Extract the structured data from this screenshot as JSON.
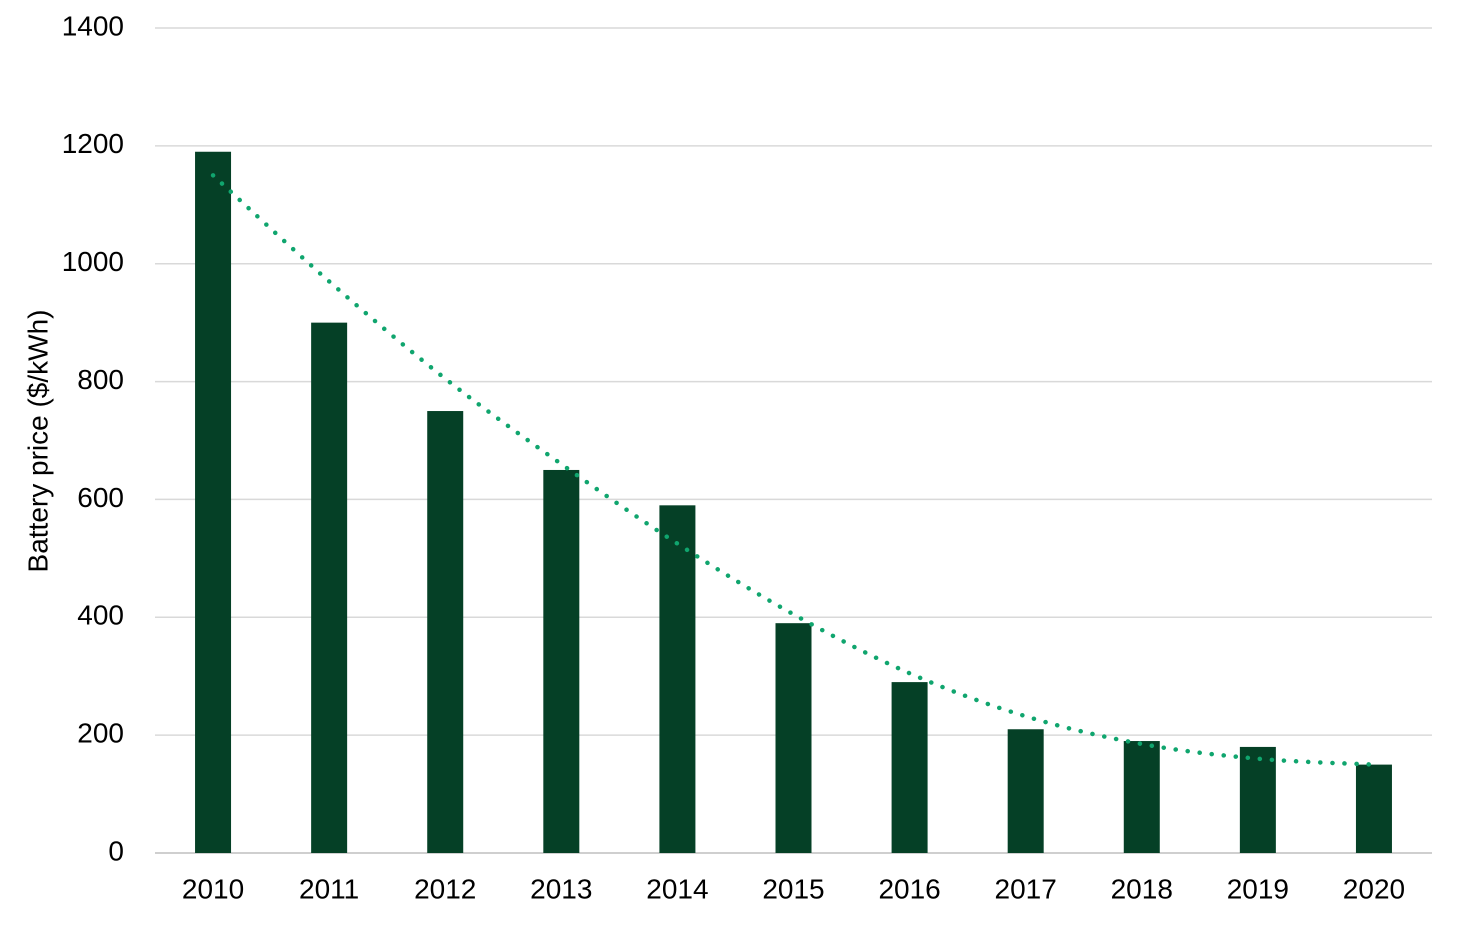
{
  "chart_data": {
    "type": "bar",
    "title": "",
    "xlabel": "",
    "ylabel": "Battery price ($/kWh)",
    "categories": [
      "2010",
      "2011",
      "2012",
      "2013",
      "2014",
      "2015",
      "2016",
      "2017",
      "2018",
      "2019",
      "2020"
    ],
    "series": [
      {
        "values": [
          1190,
          900,
          750,
          650,
          590,
          390,
          290,
          210,
          190,
          180,
          150
        ],
        "color": "#054026"
      }
    ],
    "trendline": {
      "style": "dotted",
      "color": "#10A56E",
      "values": [
        1150,
        970,
        805,
        660,
        525,
        405,
        305,
        232,
        185,
        160,
        150
      ]
    },
    "ylim": [
      0,
      1400
    ],
    "yticks": [
      0,
      200,
      400,
      600,
      800,
      1000,
      1200,
      1400
    ],
    "grid": true,
    "legend": "none"
  }
}
